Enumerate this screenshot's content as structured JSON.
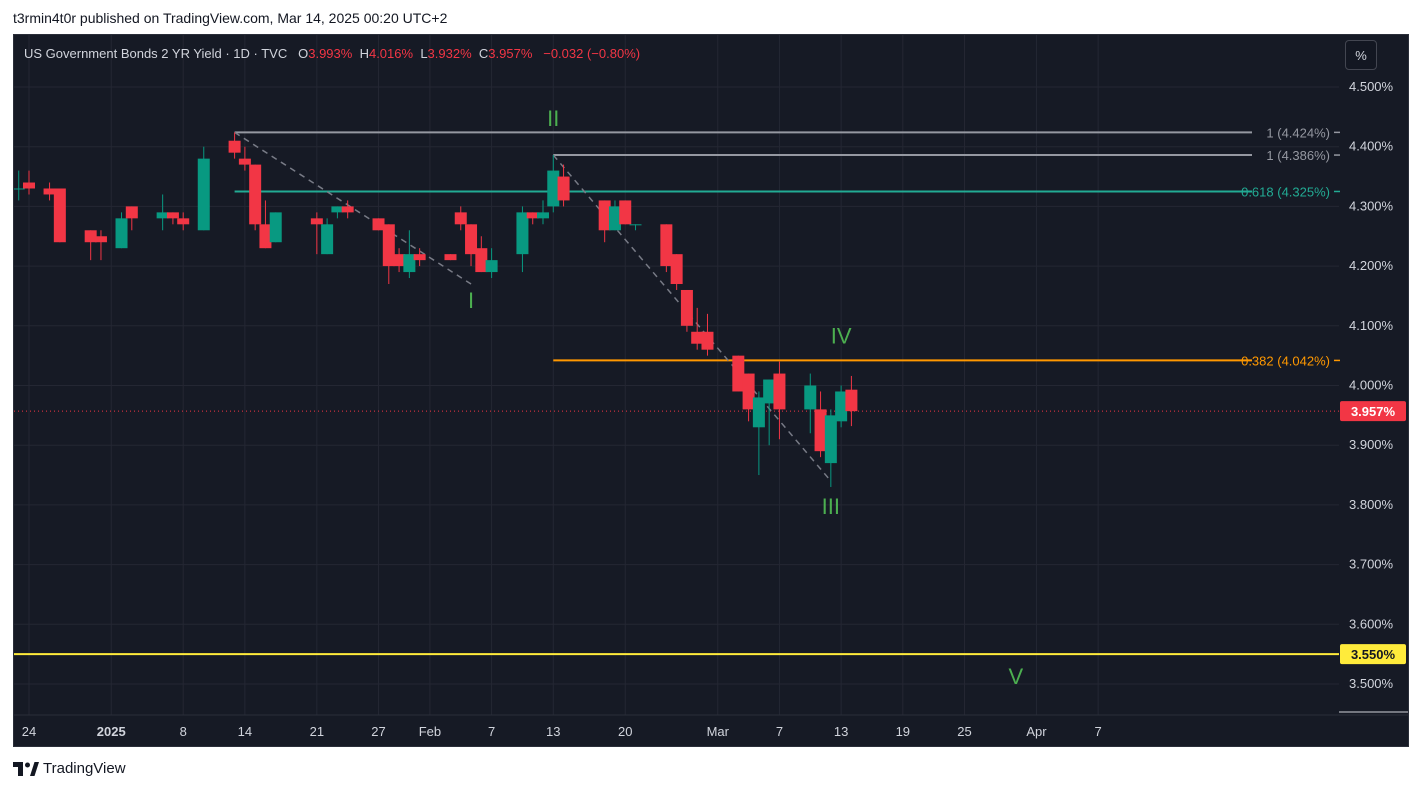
{
  "header": {
    "published_line": "t3rmin4t0r published on TradingView.com, Mar 14, 2025 00:20 UTC+2"
  },
  "legend": {
    "symbol": "US Government Bonds 2 YR Yield · 1D · TVC",
    "o_key": "O",
    "o_val": "3.993%",
    "h_key": "H",
    "h_val": "4.016%",
    "l_key": "L",
    "l_val": "3.932%",
    "c_key": "C",
    "c_val": "3.957%",
    "change": "−0.032 (−0.80%)"
  },
  "unit_button": "%",
  "footer": {
    "brand": "TradingView"
  },
  "colors": {
    "background": "#161a25",
    "grid": "#242733",
    "text": "#d1d4dc",
    "up": "#089981",
    "down": "#f23645",
    "wave_label": "#4caf50",
    "fib_orange": "#ff9800",
    "fib_teal": "#22ab94",
    "fib_gray": "#9598a1",
    "target_yellow": "#ffeb3b"
  },
  "chart_data": {
    "type": "candlestick",
    "title": "US Government Bonds 2 YR Yield · 1D · TVC",
    "y_unit": "%",
    "ylim": [
      3.45,
      4.56
    ],
    "y_ticks": [
      {
        "value": 3.5,
        "label": "3.500%"
      },
      {
        "value": 3.6,
        "label": "3.600%"
      },
      {
        "value": 3.7,
        "label": "3.700%"
      },
      {
        "value": 3.8,
        "label": "3.800%"
      },
      {
        "value": 3.9,
        "label": "3.900%"
      },
      {
        "value": 4.0,
        "label": "4.000%"
      },
      {
        "value": 4.1,
        "label": "4.100%"
      },
      {
        "value": 4.2,
        "label": "4.200%"
      },
      {
        "value": 4.3,
        "label": "4.300%"
      },
      {
        "value": 4.4,
        "label": "4.400%"
      },
      {
        "value": 4.5,
        "label": "4.500%"
      }
    ],
    "x_ticks": [
      {
        "date": "2024-12-24",
        "label": "24",
        "bold": false
      },
      {
        "date": "2025-01-01",
        "label": "2025",
        "bold": true
      },
      {
        "date": "2025-01-08",
        "label": "8",
        "bold": false
      },
      {
        "date": "2025-01-14",
        "label": "14",
        "bold": false
      },
      {
        "date": "2025-01-21",
        "label": "21",
        "bold": false
      },
      {
        "date": "2025-01-27",
        "label": "27",
        "bold": false
      },
      {
        "date": "2025-02-01",
        "label": "Feb",
        "bold": false
      },
      {
        "date": "2025-02-07",
        "label": "7",
        "bold": false
      },
      {
        "date": "2025-02-13",
        "label": "13",
        "bold": false
      },
      {
        "date": "2025-02-20",
        "label": "20",
        "bold": false
      },
      {
        "date": "2025-03-01",
        "label": "Mar",
        "bold": false
      },
      {
        "date": "2025-03-07",
        "label": "7",
        "bold": false
      },
      {
        "date": "2025-03-13",
        "label": "13",
        "bold": false
      },
      {
        "date": "2025-03-19",
        "label": "19",
        "bold": false
      },
      {
        "date": "2025-03-25",
        "label": "25",
        "bold": false
      },
      {
        "date": "2025-04-01",
        "label": "Apr",
        "bold": false
      },
      {
        "date": "2025-04-07",
        "label": "7",
        "bold": false
      }
    ],
    "candles": [
      {
        "date": "2024-12-20",
        "o": 4.31,
        "h": 4.34,
        "l": 4.3,
        "c": 4.33
      },
      {
        "date": "2024-12-23",
        "o": 4.33,
        "h": 4.36,
        "l": 4.31,
        "c": 4.33
      },
      {
        "date": "2024-12-24",
        "o": 4.34,
        "h": 4.36,
        "l": 4.32,
        "c": 4.33
      },
      {
        "date": "2024-12-26",
        "o": 4.33,
        "h": 4.34,
        "l": 4.31,
        "c": 4.32
      },
      {
        "date": "2024-12-27",
        "o": 4.33,
        "h": 4.33,
        "l": 4.24,
        "c": 4.24
      },
      {
        "date": "2024-12-30",
        "o": 4.26,
        "h": 4.26,
        "l": 4.21,
        "c": 4.24
      },
      {
        "date": "2024-12-31",
        "o": 4.25,
        "h": 4.26,
        "l": 4.21,
        "c": 4.24
      },
      {
        "date": "2025-01-02",
        "o": 4.23,
        "h": 4.29,
        "l": 4.23,
        "c": 4.28
      },
      {
        "date": "2025-01-03",
        "o": 4.3,
        "h": 4.3,
        "l": 4.26,
        "c": 4.28
      },
      {
        "date": "2025-01-06",
        "o": 4.28,
        "h": 4.32,
        "l": 4.26,
        "c": 4.29
      },
      {
        "date": "2025-01-07",
        "o": 4.29,
        "h": 4.29,
        "l": 4.27,
        "c": 4.28
      },
      {
        "date": "2025-01-08",
        "o": 4.28,
        "h": 4.29,
        "l": 4.26,
        "c": 4.27
      },
      {
        "date": "2025-01-10",
        "o": 4.26,
        "h": 4.4,
        "l": 4.26,
        "c": 4.38
      },
      {
        "date": "2025-01-13",
        "o": 4.41,
        "h": 4.424,
        "l": 4.38,
        "c": 4.39
      },
      {
        "date": "2025-01-14",
        "o": 4.38,
        "h": 4.4,
        "l": 4.36,
        "c": 4.37
      },
      {
        "date": "2025-01-15",
        "o": 4.37,
        "h": 4.37,
        "l": 4.26,
        "c": 4.27
      },
      {
        "date": "2025-01-16",
        "o": 4.27,
        "h": 4.31,
        "l": 4.23,
        "c": 4.23
      },
      {
        "date": "2025-01-17",
        "o": 4.24,
        "h": 4.29,
        "l": 4.24,
        "c": 4.29
      },
      {
        "date": "2025-01-21",
        "o": 4.28,
        "h": 4.29,
        "l": 4.22,
        "c": 4.27
      },
      {
        "date": "2025-01-22",
        "o": 4.22,
        "h": 4.28,
        "l": 4.22,
        "c": 4.27
      },
      {
        "date": "2025-01-23",
        "o": 4.29,
        "h": 4.3,
        "l": 4.28,
        "c": 4.3
      },
      {
        "date": "2025-01-24",
        "o": 4.3,
        "h": 4.31,
        "l": 4.28,
        "c": 4.29
      },
      {
        "date": "2025-01-27",
        "o": 4.28,
        "h": 4.28,
        "l": 4.26,
        "c": 4.26
      },
      {
        "date": "2025-01-28",
        "o": 4.27,
        "h": 4.27,
        "l": 4.17,
        "c": 4.2
      },
      {
        "date": "2025-01-29",
        "o": 4.22,
        "h": 4.23,
        "l": 4.19,
        "c": 4.2
      },
      {
        "date": "2025-01-30",
        "o": 4.19,
        "h": 4.26,
        "l": 4.18,
        "c": 4.22
      },
      {
        "date": "2025-01-31",
        "o": 4.22,
        "h": 4.23,
        "l": 4.2,
        "c": 4.21
      },
      {
        "date": "2025-02-03",
        "o": 4.22,
        "h": 4.22,
        "l": 4.21,
        "c": 4.21
      },
      {
        "date": "2025-02-04",
        "o": 4.29,
        "h": 4.3,
        "l": 4.26,
        "c": 4.27
      },
      {
        "date": "2025-02-05",
        "o": 4.27,
        "h": 4.27,
        "l": 4.2,
        "c": 4.22
      },
      {
        "date": "2025-02-06",
        "o": 4.23,
        "h": 4.25,
        "l": 4.19,
        "c": 4.19
      },
      {
        "date": "2025-02-07",
        "o": 4.19,
        "h": 4.23,
        "l": 4.18,
        "c": 4.21
      },
      {
        "date": "2025-02-10",
        "o": 4.22,
        "h": 4.3,
        "l": 4.19,
        "c": 4.29
      },
      {
        "date": "2025-02-11",
        "o": 4.29,
        "h": 4.29,
        "l": 4.27,
        "c": 4.28
      },
      {
        "date": "2025-02-12",
        "o": 4.28,
        "h": 4.31,
        "l": 4.27,
        "c": 4.29
      },
      {
        "date": "2025-02-13",
        "o": 4.3,
        "h": 4.386,
        "l": 4.29,
        "c": 4.36
      },
      {
        "date": "2025-02-14",
        "o": 4.35,
        "h": 4.37,
        "l": 4.3,
        "c": 4.31
      },
      {
        "date": "2025-02-18",
        "o": 4.31,
        "h": 4.31,
        "l": 4.24,
        "c": 4.26
      },
      {
        "date": "2025-02-19",
        "o": 4.26,
        "h": 4.31,
        "l": 4.26,
        "c": 4.3
      },
      {
        "date": "2025-02-20",
        "o": 4.31,
        "h": 4.31,
        "l": 4.27,
        "c": 4.27
      },
      {
        "date": "2025-02-21",
        "o": 4.27,
        "h": 4.27,
        "l": 4.26,
        "c": 4.27
      },
      {
        "date": "2025-02-24",
        "o": 4.27,
        "h": 4.27,
        "l": 4.19,
        "c": 4.2
      },
      {
        "date": "2025-02-25",
        "o": 4.22,
        "h": 4.22,
        "l": 4.16,
        "c": 4.17
      },
      {
        "date": "2025-02-26",
        "o": 4.16,
        "h": 4.16,
        "l": 4.09,
        "c": 4.1
      },
      {
        "date": "2025-02-27",
        "o": 4.09,
        "h": 4.13,
        "l": 4.06,
        "c": 4.07
      },
      {
        "date": "2025-02-28",
        "o": 4.09,
        "h": 4.12,
        "l": 4.05,
        "c": 4.06
      },
      {
        "date": "2025-03-03",
        "o": 4.05,
        "h": 4.05,
        "l": 3.99,
        "c": 3.99
      },
      {
        "date": "2025-03-04",
        "o": 4.02,
        "h": 4.02,
        "l": 3.94,
        "c": 3.96
      },
      {
        "date": "2025-03-05",
        "o": 3.93,
        "h": 3.99,
        "l": 3.85,
        "c": 3.98
      },
      {
        "date": "2025-03-06",
        "o": 3.97,
        "h": 4.01,
        "l": 3.9,
        "c": 4.01
      },
      {
        "date": "2025-03-07",
        "o": 4.02,
        "h": 4.04,
        "l": 3.91,
        "c": 3.96
      },
      {
        "date": "2025-03-10",
        "o": 3.96,
        "h": 4.02,
        "l": 3.92,
        "c": 4.0
      },
      {
        "date": "2025-03-11",
        "o": 3.96,
        "h": 3.99,
        "l": 3.88,
        "c": 3.89
      },
      {
        "date": "2025-03-12",
        "o": 3.87,
        "h": 3.96,
        "l": 3.83,
        "c": 3.95
      },
      {
        "date": "2025-03-13",
        "o": 3.94,
        "h": 4.0,
        "l": 3.93,
        "c": 3.99
      },
      {
        "date": "2025-03-14",
        "o": 3.993,
        "h": 4.016,
        "l": 3.932,
        "c": 3.957
      }
    ],
    "levels": [
      {
        "value": 4.424,
        "label": "1 (4.424%)",
        "color": "#9598a1",
        "start": "2025-01-13",
        "kind": "fib"
      },
      {
        "value": 4.386,
        "label": "1 (4.386%)",
        "color": "#9598a1",
        "start": "2025-02-13",
        "kind": "fib"
      },
      {
        "value": 4.325,
        "label": "0.618 (4.325%)",
        "color": "#22ab94",
        "start": "2025-01-13",
        "kind": "fib"
      },
      {
        "value": 4.042,
        "label": "0.382 (4.042%)",
        "color": "#ff9800",
        "start": "2025-02-13",
        "kind": "fib"
      },
      {
        "value": 3.55,
        "label": "3.550%",
        "color": "#ffeb3b",
        "start": "2024-12-19",
        "kind": "target"
      }
    ],
    "last_price": {
      "value": 3.957,
      "label": "3.957%",
      "color": "#f23645"
    },
    "wave_lines": [
      {
        "from": {
          "date": "2025-01-13",
          "value": 4.424
        },
        "to": {
          "date": "2025-02-05",
          "value": 4.17
        }
      },
      {
        "from": {
          "date": "2025-02-13",
          "value": 4.386
        },
        "to": {
          "date": "2025-03-12",
          "value": 3.84
        }
      }
    ],
    "wave_labels": [
      {
        "text": "I",
        "date": "2025-02-05",
        "value": 4.13
      },
      {
        "text": "II",
        "date": "2025-02-13",
        "value": 4.435
      },
      {
        "text": "III",
        "date": "2025-03-12",
        "value": 3.785
      },
      {
        "text": "IV",
        "date": "2025-03-13",
        "value": 4.07
      },
      {
        "text": "V",
        "date": "2025-03-30",
        "value": 3.5
      }
    ]
  }
}
